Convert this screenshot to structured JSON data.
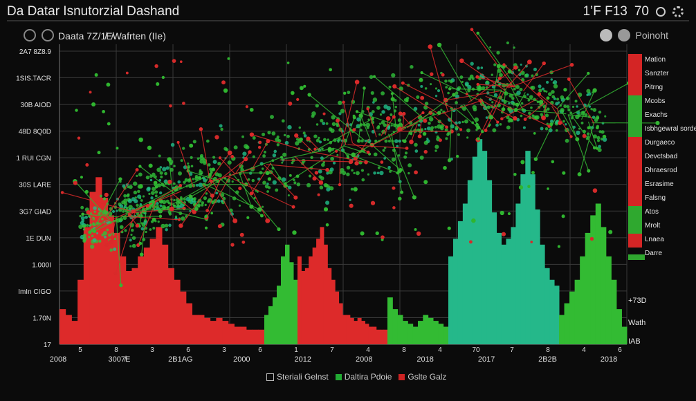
{
  "header": {
    "title": "Da Datar Isnutorzial Dashand",
    "top_right_code": "1’F F13",
    "top_right_value": "70"
  },
  "subtitle": "Daata 7Z/1̸E̸Wafrten  (IIe)",
  "legend_top": {
    "label": "Poinoht"
  },
  "bottom_legend": {
    "items": [
      {
        "label": "Steriali Gelnst",
        "color": "#22aa33"
      },
      {
        "label": "Daltira Pdoie",
        "color": "#cc2222"
      },
      {
        "label": "Gslte Galz",
        "color": "#22aa33"
      }
    ]
  },
  "chart_data": {
    "type": "scatter",
    "title": "Da Datar Isnutorzial Dashand",
    "y_tick_labels": [
      "2A7 8Z8.9",
      "1SIS.TACR",
      "30B AIOD",
      "48D 8Q0D",
      "1 RUI CGN",
      "30S LARE",
      "3G7 GIAD",
      "1E DUN",
      "1.000I",
      "ImIn  CIGO",
      "1.70N",
      "17"
    ],
    "x_tick_labels": [
      "2008",
      "3007̸E",
      "2B1AG",
      "2000",
      "2012",
      "2008",
      "2018",
      "2017",
      "2B2B",
      "2018"
    ],
    "x_minor_ticks": [
      "5",
      "8",
      "3",
      "6",
      "3",
      "6",
      "1",
      "7",
      "4",
      "8",
      "4",
      "70",
      "7",
      "8",
      "4",
      "6"
    ],
    "right_right_labels": [
      "+73D",
      "Wath",
      "IAB"
    ],
    "y_range": [
      0,
      100
    ],
    "categories_right": [
      {
        "label": "Mation",
        "color": "#d42525"
      },
      {
        "label": "Sanzter",
        "color": "#d42525"
      },
      {
        "label": "Pitrng",
        "color": "#d42525"
      },
      {
        "label": "Mcobs",
        "color": "#2fa82f"
      },
      {
        "label": "Exachs",
        "color": "#2fa82f"
      },
      {
        "label": "Isbhgewral sordelen",
        "color": "#2fa82f"
      },
      {
        "label": "Durgaeco",
        "color": "#d42525"
      },
      {
        "label": "Devctsbad",
        "color": "#d42525"
      },
      {
        "label": "Dhraesrod",
        "color": "#d42525"
      },
      {
        "label": "Esrasime",
        "color": "#d42525"
      },
      {
        "label": "Falsng",
        "color": "#d42525"
      },
      {
        "label": "Atos",
        "color": "#2fa82f"
      },
      {
        "label": "Mrolt",
        "color": "#2fa82f"
      },
      {
        "label": "Lnaea",
        "color": "#d42525"
      },
      {
        "label": "Darre",
        "color": "#2fa82f"
      }
    ],
    "histogram": {
      "series_red": [
        12,
        10,
        8,
        22,
        40,
        52,
        57,
        50,
        44,
        38,
        30,
        25,
        26,
        30,
        33,
        36,
        40,
        34,
        26,
        22,
        18,
        14,
        10,
        10,
        9,
        8,
        9,
        8,
        7,
        6,
        6,
        5,
        5,
        5
      ],
      "series_green": [
        10,
        13,
        16,
        20,
        30,
        34,
        28,
        22,
        16,
        12,
        10,
        8,
        7,
        6,
        8,
        10,
        9,
        8,
        7,
        6,
        7,
        8,
        10,
        12,
        14,
        17,
        20,
        25,
        32,
        38,
        42,
        45,
        48,
        44,
        38
      ],
      "series_teal": [
        30,
        36,
        42,
        48,
        56,
        64,
        70,
        66,
        56,
        45,
        38,
        34,
        36,
        40,
        48,
        58,
        66,
        58,
        46,
        34,
        26,
        22,
        20
      ],
      "series_green2": [
        10,
        14,
        18,
        22,
        30,
        38,
        44,
        48,
        40,
        30,
        22,
        12,
        6
      ]
    },
    "trend": {
      "x": [
        0,
        10,
        20,
        30,
        40,
        50,
        60,
        70,
        80,
        90,
        100
      ],
      "y": [
        20,
        26,
        34,
        40,
        46,
        50,
        55,
        63,
        70,
        60,
        54
      ]
    }
  }
}
